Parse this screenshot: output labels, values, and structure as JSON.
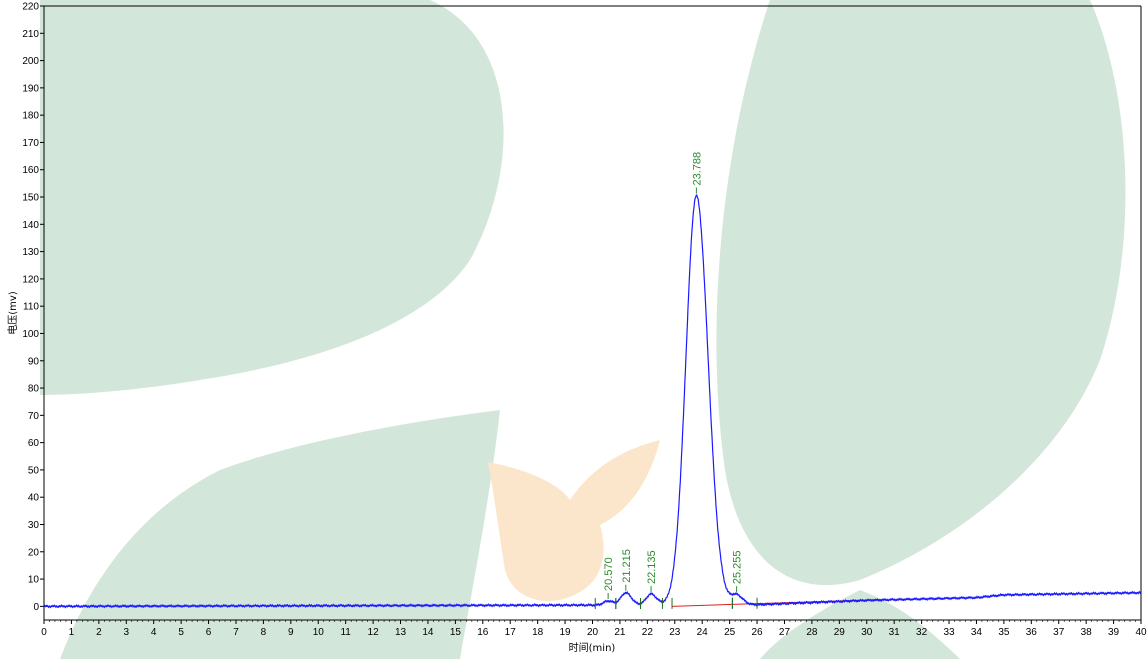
{
  "chart_data": {
    "type": "line",
    "xlabel": "时间(min)",
    "ylabel": "电压(mv)",
    "xlim": [
      0,
      40
    ],
    "ylim": [
      -5,
      220
    ],
    "x_ticks": [
      0,
      1,
      2,
      3,
      4,
      5,
      6,
      7,
      8,
      9,
      10,
      11,
      12,
      13,
      14,
      15,
      16,
      17,
      18,
      19,
      20,
      21,
      22,
      23,
      24,
      25,
      26,
      27,
      28,
      29,
      30,
      31,
      32,
      33,
      34,
      35,
      36,
      37,
      38,
      39,
      40
    ],
    "y_ticks": [
      0,
      10,
      20,
      30,
      40,
      50,
      60,
      70,
      80,
      90,
      100,
      110,
      120,
      130,
      140,
      150,
      160,
      170,
      180,
      190,
      200,
      210,
      220
    ],
    "grid": false,
    "colors": {
      "trace": "#1a1aff",
      "baseline": "#e02020",
      "peak_label": "#2e8b2e",
      "watermark_green": "#d3e6da",
      "watermark_orange": "#fbe6cc"
    },
    "peaks": [
      {
        "label": "20.570",
        "x": 20.57,
        "y": 1.5,
        "sigma": 0.16,
        "start": 20.1,
        "end": 20.85
      },
      {
        "label": "21.215",
        "x": 21.215,
        "y": 4.5,
        "sigma": 0.18,
        "start": 20.85,
        "end": 21.75
      },
      {
        "label": "22.135",
        "x": 22.135,
        "y": 4.0,
        "sigma": 0.18,
        "start": 21.75,
        "end": 22.55
      },
      {
        "label": "23.788",
        "x": 23.788,
        "y": 150,
        "sigma": 0.38,
        "start": 22.9,
        "end": 25.1
      },
      {
        "label": "25.255",
        "x": 25.255,
        "y": 3.5,
        "sigma": 0.2,
        "start": 25.1,
        "end": 26.0
      }
    ],
    "baseline": {
      "x_start": 22.9,
      "y_start": 0.0,
      "x_end": 30.6,
      "y_end": 2.5
    },
    "drift": [
      [
        0,
        0
      ],
      [
        26,
        0.6
      ],
      [
        30,
        2.2
      ],
      [
        34,
        3.2
      ],
      [
        35,
        4.2
      ],
      [
        40,
        5.0
      ]
    ]
  }
}
